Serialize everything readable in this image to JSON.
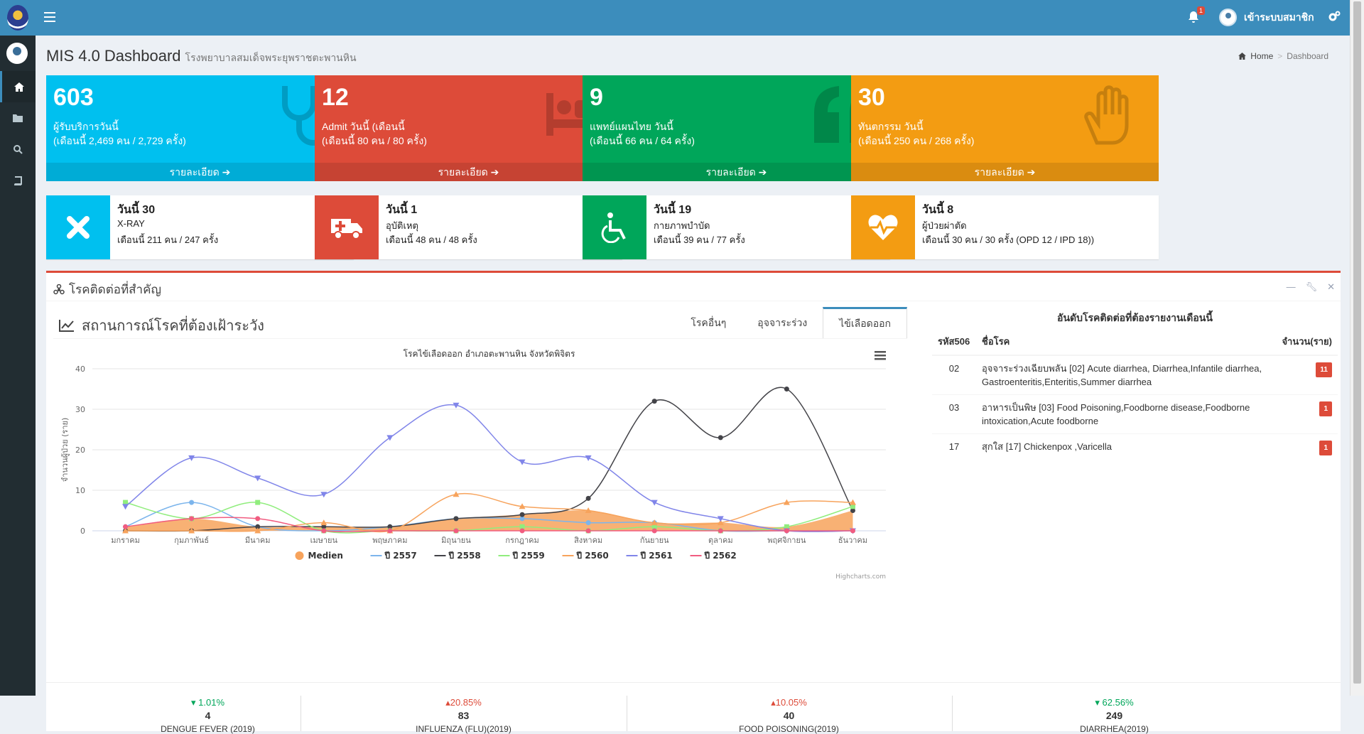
{
  "topbar": {
    "notifications_count": "1",
    "user_label": "เข้าระบบสมาชิก"
  },
  "page": {
    "title": "MIS 4.0 Dashboard",
    "subtitle": "โรงพยาบาลสมเด็จพระยุพราชตะพานหิน",
    "breadcrumb": [
      "Home",
      "Dashboard"
    ]
  },
  "small_boxes": [
    {
      "value": "603",
      "line1": "ผู้รับบริการวันนี้",
      "line2": "(เดือนนี้ 2,469 คน / 2,729 ครั้ง)",
      "footer": "รายละเอียด",
      "color": "#00c0ef",
      "icon": "stethoscope-icon"
    },
    {
      "value": "12",
      "line1": "Admit วันนี้ (เดือนนี้",
      "line2": "(เดือนนี้ 80 คน / 80 ครั้ง)",
      "footer": "รายละเอียด",
      "color": "#dd4b39",
      "icon": "bed-icon"
    },
    {
      "value": "9",
      "line1": "แพทย์แผนไทย วันนี้",
      "line2": "(เดือนนี้ 66 คน / 64 ครั้ง)",
      "footer": "รายละเอียด",
      "color": "#00a65a",
      "icon": "quote-icon"
    },
    {
      "value": "30",
      "line1": "ทันตกรรม วันนี้",
      "line2": "(เดือนนี้ 250 คน / 268 ครั้ง)",
      "footer": "รายละเอียด",
      "color": "#f39c12",
      "icon": "hand-icon"
    }
  ],
  "info_boxes": [
    {
      "line1": "วันนี้ 30",
      "line2": "X-RAY",
      "line3": "เดือนนี้ 211 คน / 247 ครั้ง",
      "color": "#00c0ef",
      "icon": "x-icon"
    },
    {
      "line1": "วันนี้ 1",
      "line2": "อุบัติเหตุ",
      "line3": "เดือนนี้ 48 คน / 48 ครั้ง",
      "color": "#dd4b39",
      "icon": "ambulance-icon"
    },
    {
      "line1": "วันนี้ 19",
      "line2": "กายภาพบำบัด",
      "line3": "เดือนนี้ 39 คน / 77 ครั้ง",
      "color": "#00a65a",
      "icon": "wheelchair-icon"
    },
    {
      "line1": "วันนี้ 8",
      "line2": "ผู้ป่วยผ่าตัด",
      "line3": "เดือนนี้ 30 คน / 30 ครั้ง (OPD 12 / IPD 18))",
      "color": "#f39c12",
      "icon": "heartbeat-icon"
    }
  ],
  "disease_box": {
    "title": "โรคติดต่อที่สำคัญ",
    "surveillance_title": "สถานการณ์โรคที่ต้องเฝ้าระวัง",
    "tabs": [
      "โรคอื่นๆ",
      "อุจจาระร่วง",
      "ไข้เลือดออก"
    ],
    "active_tab": 2,
    "credits": "Highcharts.com"
  },
  "chart_data": {
    "type": "line",
    "title": "โรคไข้เลือดออก อำเภอตะพานหิน จังหวัดพิจิตร",
    "ylabel": "จำนวนผู้ป่วย (ราย)",
    "xlabel": "",
    "ylim": [
      0,
      40
    ],
    "yticks": [
      0,
      10,
      20,
      30,
      40
    ],
    "grid": true,
    "legend_position": "bottom",
    "categories": [
      "มกราคม",
      "กุมภาพันธ์",
      "มีนาคม",
      "เมษายน",
      "พฤษภาคม",
      "มิถุนายน",
      "กรกฎาคม",
      "สิงหาคม",
      "กันยายน",
      "ตุลาคม",
      "พฤศจิกายน",
      "ธันวาคม"
    ],
    "series": [
      {
        "name": "Medien",
        "type": "area",
        "color": "#f7a35c",
        "values": [
          1,
          3,
          1,
          1,
          1,
          3,
          4,
          5,
          2,
          2,
          1,
          5
        ]
      },
      {
        "name": "ปี 2557",
        "color": "#7cb5ec",
        "marker": "circle",
        "values": [
          1,
          7,
          1,
          0,
          1,
          3,
          3,
          2,
          2,
          0,
          0,
          0
        ]
      },
      {
        "name": "ปี 2558",
        "color": "#434348",
        "marker": "circle",
        "values": [
          0,
          0,
          1,
          1,
          1,
          3,
          4,
          8,
          32,
          23,
          35,
          5
        ]
      },
      {
        "name": "ปี 2559",
        "color": "#90ed7d",
        "marker": "square",
        "values": [
          7,
          3,
          7,
          0,
          0,
          0,
          1,
          0,
          1,
          0,
          1,
          6
        ]
      },
      {
        "name": "ปี 2560",
        "color": "#f7a35c",
        "marker": "triangle",
        "values": [
          0,
          0,
          0,
          2,
          0,
          9,
          6,
          5,
          2,
          2,
          7,
          7
        ]
      },
      {
        "name": "ปี 2561",
        "color": "#8085e9",
        "marker": "triangle-down",
        "values": [
          6,
          18,
          13,
          9,
          23,
          31,
          17,
          18,
          7,
          3,
          0,
          0
        ]
      },
      {
        "name": "ปี 2562",
        "color": "#f15c80",
        "marker": "circle",
        "values": [
          1,
          3,
          3,
          0,
          0,
          0,
          0,
          0,
          0,
          0,
          0,
          0
        ]
      }
    ]
  },
  "report_table": {
    "title": "อันดับโรคติดต่อที่ต้องรายงานเดือนนี้",
    "headers": [
      "รหัส506",
      "ชื่อโรค",
      "จำนวน(ราย)"
    ],
    "rows": [
      {
        "code": "02",
        "name": "อุจจาระร่วงเฉียบพลัน [02] Acute diarrhea, Diarrhea,Infantile diarrhea, Gastroenteritis,Enteritis,Summer diarrhea",
        "count": "11"
      },
      {
        "code": "03",
        "name": "อาหารเป็นพิษ [03] Food Poisoning,Foodborne disease,Foodborne intoxication,Acute foodborne",
        "count": "1"
      },
      {
        "code": "17",
        "name": "สุกใส [17] Chickenpox ,Varicella",
        "count": "1"
      }
    ]
  },
  "stats": [
    {
      "trend": "down",
      "pct": "1.01%",
      "value": "4",
      "label": "DENGUE FEVER (2019)"
    },
    {
      "trend": "up",
      "pct": "20.85%",
      "value": "83",
      "label": "INFLUENZA (FLU)(2019)"
    },
    {
      "trend": "up",
      "pct": "10.05%",
      "value": "40",
      "label": "FOOD POISONING(2019)"
    },
    {
      "trend": "down",
      "pct": "62.56%",
      "value": "249",
      "label": "DIARRHEA(2019)"
    }
  ]
}
